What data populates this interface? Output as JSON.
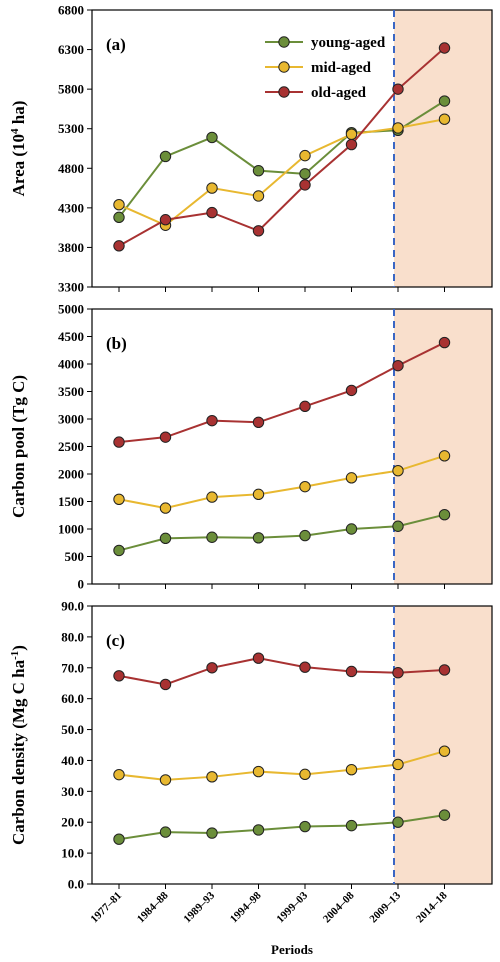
{
  "chart_data": [
    {
      "type": "line",
      "panel_label": "(a)",
      "ylabel": "Area (10",
      "ylabel_sup": "4",
      "ylabel_tail": " ha)",
      "ylim": [
        3300,
        6800
      ],
      "yticks": [
        "3300",
        "3800",
        "4300",
        "4800",
        "5300",
        "5800",
        "6300",
        "6800"
      ],
      "ytick_values": [
        3300,
        3800,
        4300,
        4800,
        5300,
        5800,
        6300,
        6800
      ],
      "categories": [
        "1977–81",
        "1984–88",
        "1989–93",
        "1994–98",
        "1999–03",
        "2004–08",
        "2009–13",
        "2014–18"
      ],
      "legend_position": "top-center",
      "series": [
        {
          "name": "young-aged",
          "color": "#6b8e3a",
          "values": [
            4180,
            4950,
            5190,
            4770,
            4730,
            5250,
            5280,
            5650
          ]
        },
        {
          "name": "mid-aged",
          "color": "#e8b830",
          "values": [
            4340,
            4080,
            4550,
            4450,
            4960,
            5230,
            5310,
            5420
          ]
        },
        {
          "name": "old-aged",
          "color": "#a83232",
          "values": [
            3820,
            4150,
            4240,
            4010,
            4590,
            5100,
            5800,
            6320
          ]
        }
      ]
    },
    {
      "type": "line",
      "panel_label": "(b)",
      "ylabel": "Carbon pool (Tg C)",
      "ylim": [
        0,
        5000
      ],
      "yticks": [
        "0",
        "500",
        "1000",
        "1500",
        "2000",
        "2500",
        "3000",
        "3500",
        "4000",
        "4500",
        "5000"
      ],
      "ytick_values": [
        0,
        500,
        1000,
        1500,
        2000,
        2500,
        3000,
        3500,
        4000,
        4500,
        5000
      ],
      "categories": [
        "1977–81",
        "1984–88",
        "1989–93",
        "1994–98",
        "1999–03",
        "2004–08",
        "2009–13",
        "2014–18"
      ],
      "series": [
        {
          "color": "#6b8e3a",
          "values": [
            610,
            830,
            850,
            840,
            880,
            1000,
            1050,
            1260
          ]
        },
        {
          "color": "#e8b830",
          "values": [
            1540,
            1380,
            1580,
            1630,
            1770,
            1930,
            2060,
            2330
          ]
        },
        {
          "color": "#a83232",
          "values": [
            2580,
            2670,
            2970,
            2940,
            3230,
            3520,
            3970,
            4390
          ]
        }
      ]
    },
    {
      "type": "line",
      "panel_label": "(c)",
      "ylabel": "Carbon density (Mg C ha",
      "ylabel_sup": "-1",
      "ylabel_tail": ")",
      "ylim": [
        0,
        90
      ],
      "yticks": [
        "0.0",
        "10.0",
        "20.0",
        "30.0",
        "40.0",
        "50.0",
        "60.0",
        "70.0",
        "80.0",
        "90.0"
      ],
      "ytick_values": [
        0,
        10,
        20,
        30,
        40,
        50,
        60,
        70,
        80,
        90
      ],
      "categories": [
        "1977–81",
        "1984–88",
        "1989–93",
        "1994–98",
        "1999–03",
        "2004–08",
        "2009–13",
        "2014–18"
      ],
      "xlabel": "Periods",
      "series": [
        {
          "color": "#6b8e3a",
          "values": [
            14.5,
            16.8,
            16.5,
            17.5,
            18.6,
            18.9,
            20.0,
            22.3
          ]
        },
        {
          "color": "#e8b830",
          "values": [
            35.4,
            33.7,
            34.7,
            36.4,
            35.5,
            37.0,
            38.7,
            43.0
          ]
        },
        {
          "color": "#a83232",
          "values": [
            67.4,
            64.6,
            70.0,
            73.1,
            70.2,
            68.8,
            68.4,
            69.3
          ]
        }
      ]
    }
  ],
  "style": {
    "shade_color": "#f9dfcc",
    "divider_color": "#3a66c4",
    "shade_from_category": "2009–13"
  }
}
